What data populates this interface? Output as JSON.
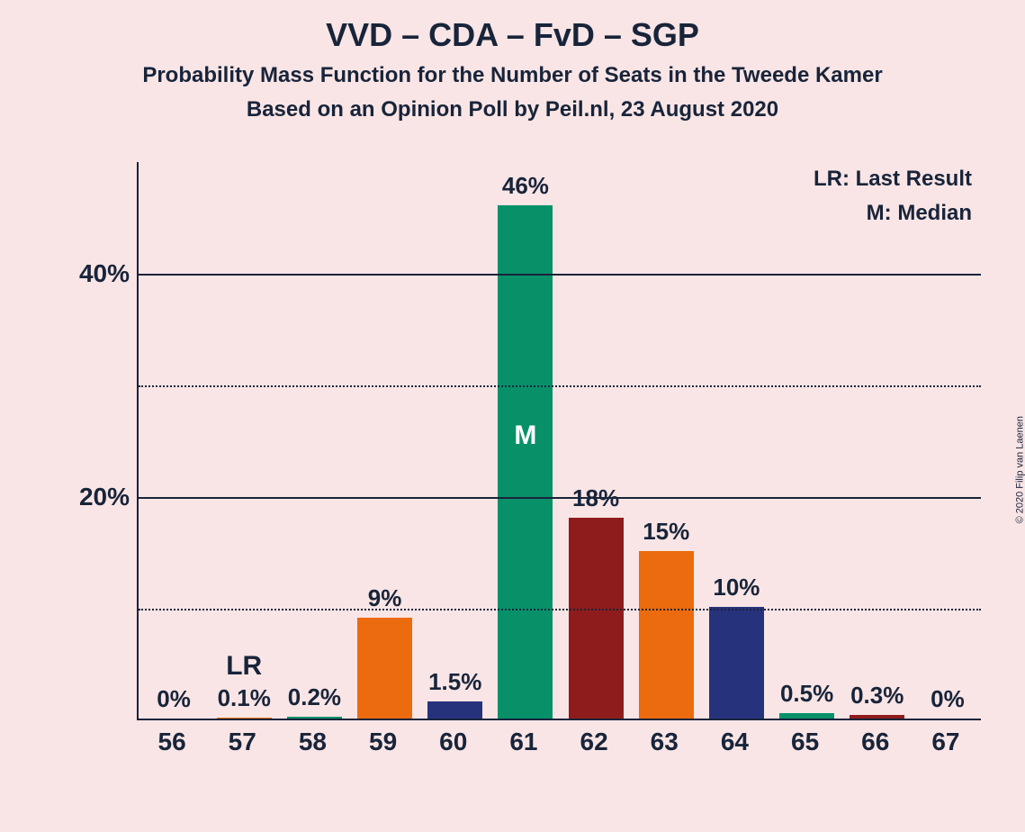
{
  "title": "VVD – CDA – FvD – SGP",
  "subtitle1": "Probability Mass Function for the Number of Seats in the Tweede Kamer",
  "subtitle2": "Based on an Opinion Poll by Peil.nl, 23 August 2020",
  "legend": {
    "lr": "LR: Last Result",
    "m": "M: Median"
  },
  "copyright": "© 2020 Filip van Laenen",
  "chart": {
    "type": "bar",
    "background_color": "#f9e5e5",
    "text_color": "#18243a",
    "title_fontsize": 36,
    "subtitle_fontsize": 24,
    "axis_fontsize": 28,
    "value_fontsize": 26,
    "ylim": [
      0,
      50
    ],
    "yticks_major": [
      20,
      40
    ],
    "yticks_minor": [
      10,
      30
    ],
    "ytick_labels": {
      "20": "20%",
      "40": "40%"
    },
    "grid_solid_color": "#18243a",
    "grid_dotted_color": "#18243a",
    "bar_width_ratio": 0.78,
    "categories": [
      "56",
      "57",
      "58",
      "59",
      "60",
      "61",
      "62",
      "63",
      "64",
      "65",
      "66",
      "67"
    ],
    "values": [
      0,
      0.1,
      0.2,
      9,
      1.5,
      46,
      18,
      15,
      10,
      0.5,
      0.3,
      0
    ],
    "value_labels": [
      "0%",
      "0.1%",
      "0.2%",
      "9%",
      "1.5%",
      "46%",
      "18%",
      "15%",
      "10%",
      "0.5%",
      "0.3%",
      "0%"
    ],
    "bar_colors": [
      "#8f1c1c",
      "#eb6b0e",
      "#089169",
      "#eb6b0e",
      "#27327d",
      "#089169",
      "#8f1c1c",
      "#eb6b0e",
      "#27327d",
      "#089169",
      "#8f1c1c",
      "#eb6b0e"
    ],
    "median_index": 5,
    "median_marker": "M",
    "lr_index": 1,
    "lr_marker": "LR"
  }
}
